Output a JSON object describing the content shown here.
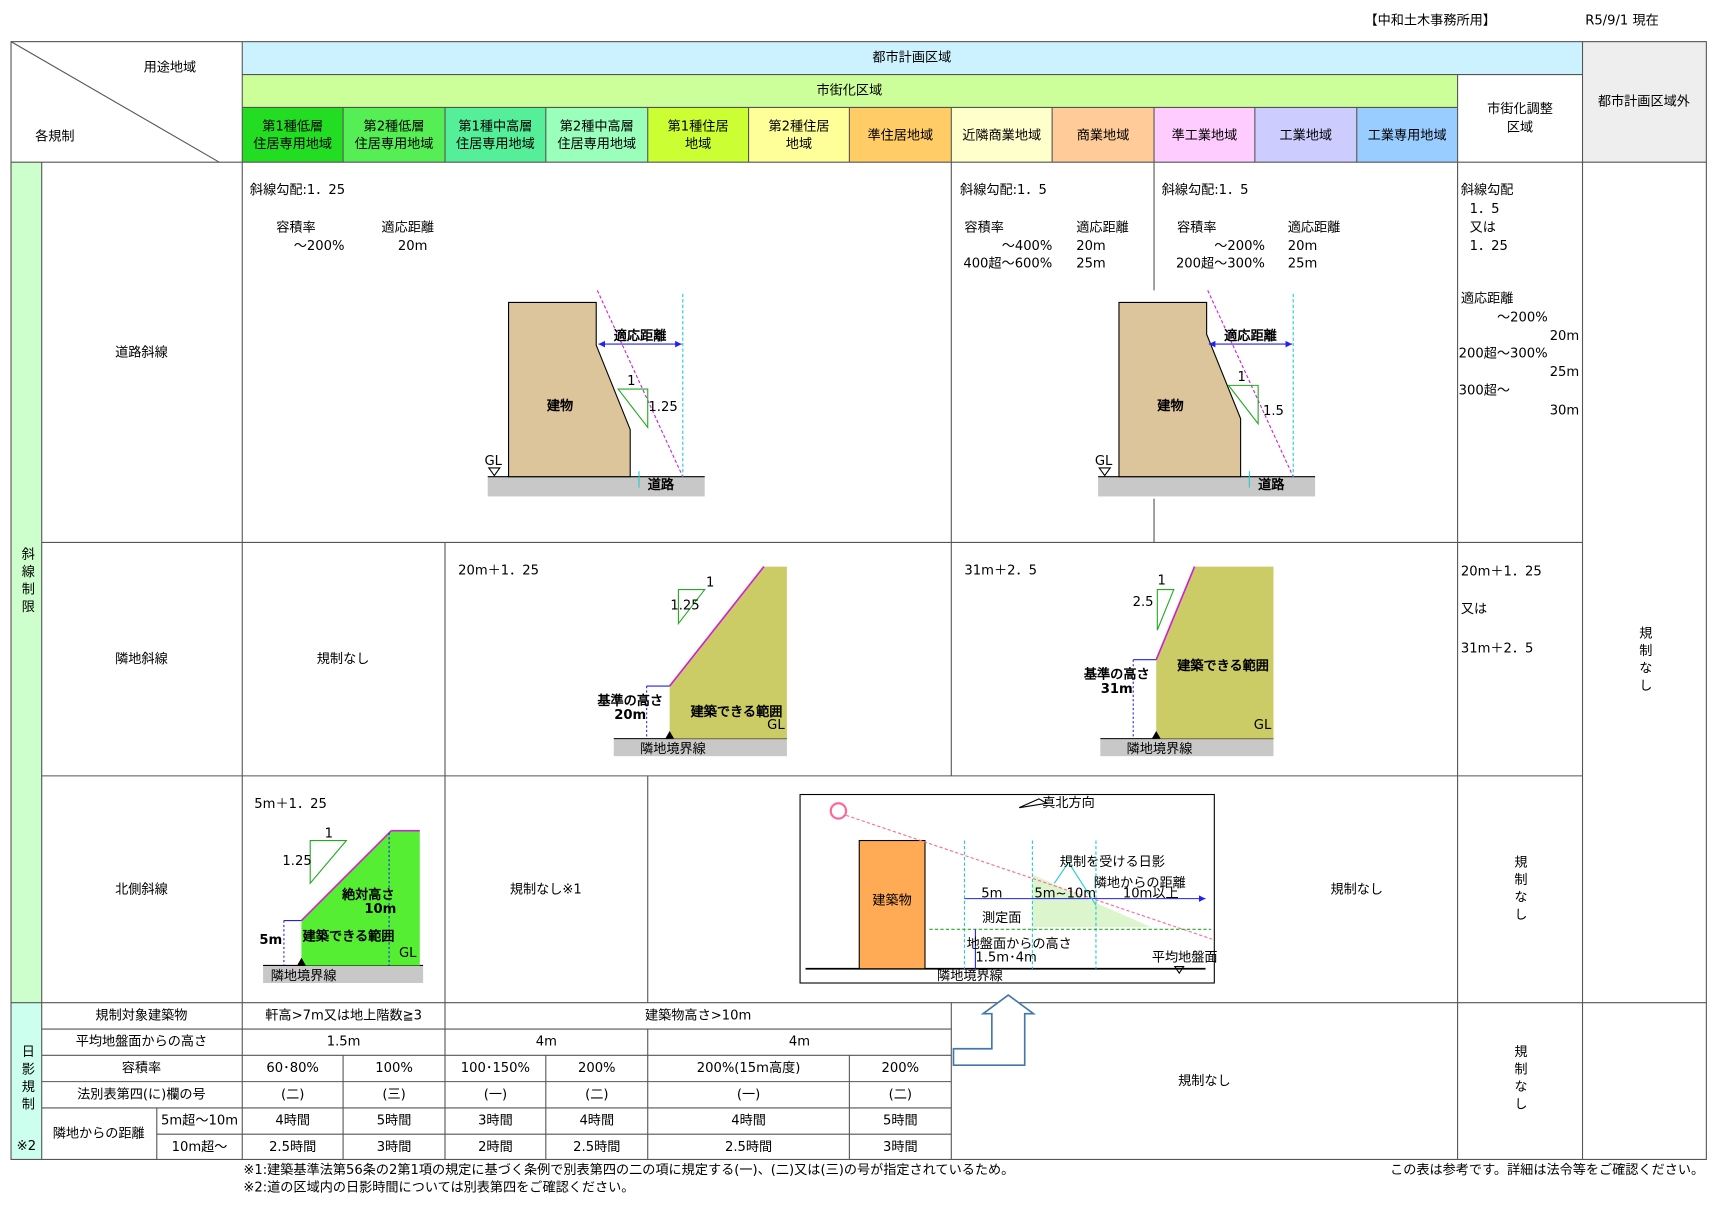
{
  "header": {
    "office": "【中和土木事務所用】",
    "date": "R5/9/1 現在"
  },
  "table": {
    "corner": {
      "top": "用途地域",
      "bottom": "各規制"
    },
    "city_planning_area": "都市計画区域",
    "urbanization_area": "市街化区域",
    "urbanization_control_area": [
      "市街化調整",
      "区域"
    ],
    "outside_area": "都市計画区域外",
    "zones": [
      [
        "第1種低層",
        "住居専用地域"
      ],
      [
        "第2種低層",
        "住居専用地域"
      ],
      [
        "第1種中高層",
        "住居専用地域"
      ],
      [
        "第2種中高層",
        "住居専用地域"
      ],
      [
        "第1種住居",
        "地域"
      ],
      [
        "第2種住居",
        "地域"
      ],
      [
        "準住居地域"
      ],
      [
        "近隣商業地域"
      ],
      [
        "商業地域"
      ],
      [
        "準工業地域"
      ],
      [
        "工業地域"
      ],
      [
        "工業専用地域"
      ]
    ],
    "slope_group": "斜線制限",
    "outside_rule": "規制なし",
    "road_slope": {
      "label": "道路斜線",
      "low": {
        "gradient": "斜線勾配:1．25",
        "far_head": "容積率",
        "dist_head": "適応距離",
        "far": [
          "～200%"
        ],
        "dist": [
          "20m"
        ]
      },
      "commercial": {
        "gradient": "斜線勾配:1．5",
        "far_head": "容積率",
        "dist_head": "適応距離",
        "far": [
          "～400%",
          "400超～600%"
        ],
        "dist": [
          "20m",
          "25m"
        ]
      },
      "industrial": {
        "gradient": "斜線勾配:1．5",
        "far_head": "容積率",
        "dist_head": "適応距離",
        "far": [
          "～200%",
          "200超～300%"
        ],
        "dist": [
          "20m",
          "25m"
        ]
      },
      "control": {
        "gradient": [
          "斜線勾配",
          "1．5",
          "又は",
          "1．25"
        ],
        "dist_head": "適応距離",
        "far": [
          "～200%",
          "200超～300%",
          "300超～"
        ],
        "dist": [
          "20m",
          "25m",
          "30m"
        ]
      },
      "diagram_low": {
        "distance": "適応距離",
        "horizontal": "1",
        "vertical": "1.25",
        "building": "建物",
        "gl": "GL",
        "road": "道路"
      },
      "diagram_high": {
        "distance": "適応距離",
        "horizontal": "1",
        "vertical": "1.5",
        "building": "建物",
        "gl": "GL",
        "road": "道路"
      }
    },
    "adjacent_slope": {
      "label": "隣地斜線",
      "low": "規制なし",
      "mid": {
        "rule": "20m＋1．25",
        "horizontal": "1",
        "vertical": "1.25",
        "base_height": "基準の高さ",
        "base_value": "20m",
        "buildable": "建築できる範囲",
        "gl": "GL",
        "boundary": "隣地境界線"
      },
      "high": {
        "rule": "31m＋2．5",
        "horizontal": "1",
        "vertical": "2.5",
        "base_height": "基準の高さ",
        "base_value": "31m",
        "buildable": "建築できる範囲",
        "gl": "GL",
        "boundary": "隣地境界線"
      },
      "control": [
        "20m＋1．25",
        "又は",
        "31m＋2．5"
      ]
    },
    "north_slope": {
      "label": "北側斜線",
      "low": {
        "rule": "5m＋1．25",
        "horizontal": "1",
        "vertical": "1.25",
        "absolute_height": "絶対高さ",
        "absolute_value": "10m",
        "base_value": "5m",
        "buildable": "建築できる範囲",
        "gl": "GL",
        "boundary": "隣地境界線"
      },
      "mid": "規制なし※1",
      "diagram": {
        "north_direction": "真北方向",
        "shadow_affected": "規制を受ける日影",
        "distance_label": "隣地からの距離",
        "distance_far": "10m以上",
        "near": "5m",
        "middle": "5m~10m",
        "measurement_plane": "測定面",
        "height_label": "地盤面からの高さ",
        "height_value": "1.5m･4m",
        "building": "建築物",
        "boundary": "隣地境界線",
        "average_ground": "平均地盤面"
      },
      "high": "規制なし",
      "control": "規制なし"
    },
    "shadow": {
      "group": "日影規制",
      "note_mark": "※2",
      "distance_label": "隣地からの距離",
      "rows": [
        {
          "label": "規制対象建築物",
          "cells": [
            "軒高>7m又は地上階数≧3",
            "建築物高さ>10m"
          ]
        },
        {
          "label": "平均地盤面からの高さ",
          "cells": [
            "1.5m",
            "4m",
            "4m"
          ]
        },
        {
          "label": "容積率",
          "cells": [
            "60･80%",
            "100%",
            "100･150%",
            "200%",
            "200%(15m高度)",
            "200%"
          ]
        },
        {
          "label": "法別表第四(に)欄の号",
          "cells": [
            "(二)",
            "(三)",
            "(一)",
            "(二)",
            "(一)",
            "(二)"
          ]
        },
        {
          "label": "5m超～10m",
          "cells": [
            "4時間",
            "5時間",
            "3時間",
            "4時間",
            "4時間",
            "5時間"
          ]
        },
        {
          "label": "10m超～",
          "cells": [
            "2.5時間",
            "3時間",
            "2時間",
            "2.5時間",
            "2.5時間",
            "3時間"
          ]
        }
      ],
      "rest": "規制なし",
      "control": "規制なし"
    }
  },
  "footnotes": [
    "※1:建築基準法第56条の2第1項の規定に基づく条例で別表第四の二の項に規定する(一)、(二)又は(三)の号が指定されているため。",
    "※2:道の区域内の日影時間については別表第四をご確認ください。"
  ],
  "disclaimer": "この表は参考です。詳細は法令等をご確認ください。"
}
